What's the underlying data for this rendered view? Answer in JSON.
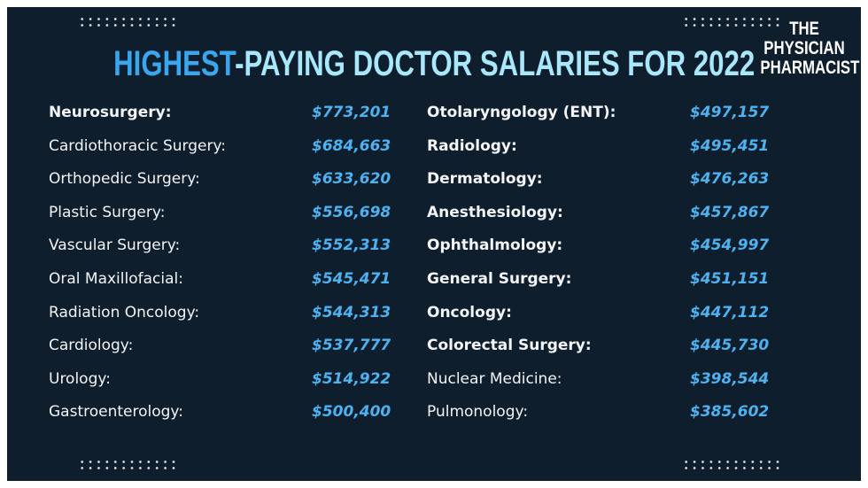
{
  "header": {
    "title_highlight": "HIGHEST",
    "title_rest": "-PAYING DOCTOR SALARIES FOR 2022",
    "logo": [
      "THE",
      "PHYSICIAN",
      "PHARMACIST"
    ]
  },
  "table": {
    "columns": [
      {
        "rows": [
          [
            "Neurosurgery:",
            "$773,201"
          ],
          [
            "Cardiothoracic Surgery:",
            "$684,663"
          ],
          [
            "Orthopedic Surgery:",
            "$633,620"
          ],
          [
            "Plastic Surgery:",
            "$556,698"
          ],
          [
            "Vascular Surgery:",
            "$552,313"
          ],
          [
            "Oral Maxillofacial:",
            "$545,471"
          ],
          [
            "Radiation Oncology:",
            "$544,313"
          ],
          [
            "Cardiology:",
            "$537,777"
          ],
          [
            "Urology:",
            "$514,922"
          ],
          [
            "Gastroenterology:",
            "$500,400"
          ]
        ]
      },
      {
        "rows": [
          [
            "Otolaryngology (ENT):",
            "$497,157"
          ],
          [
            "Radiology:",
            "$495,451"
          ],
          [
            "Dermatology:",
            "$476,263"
          ],
          [
            "Anesthesiology:",
            "$457,867"
          ],
          [
            "Ophthalmology:",
            "$454,997"
          ],
          [
            "General Surgery:",
            "$451,151"
          ],
          [
            "Oncology:",
            "$447,112"
          ],
          [
            "Colorectal Surgery:",
            "$445,730"
          ],
          [
            "Nuclear Medicine:",
            "$398,544"
          ],
          [
            "Pulmonology:",
            "$385,602"
          ]
        ]
      }
    ]
  }
}
